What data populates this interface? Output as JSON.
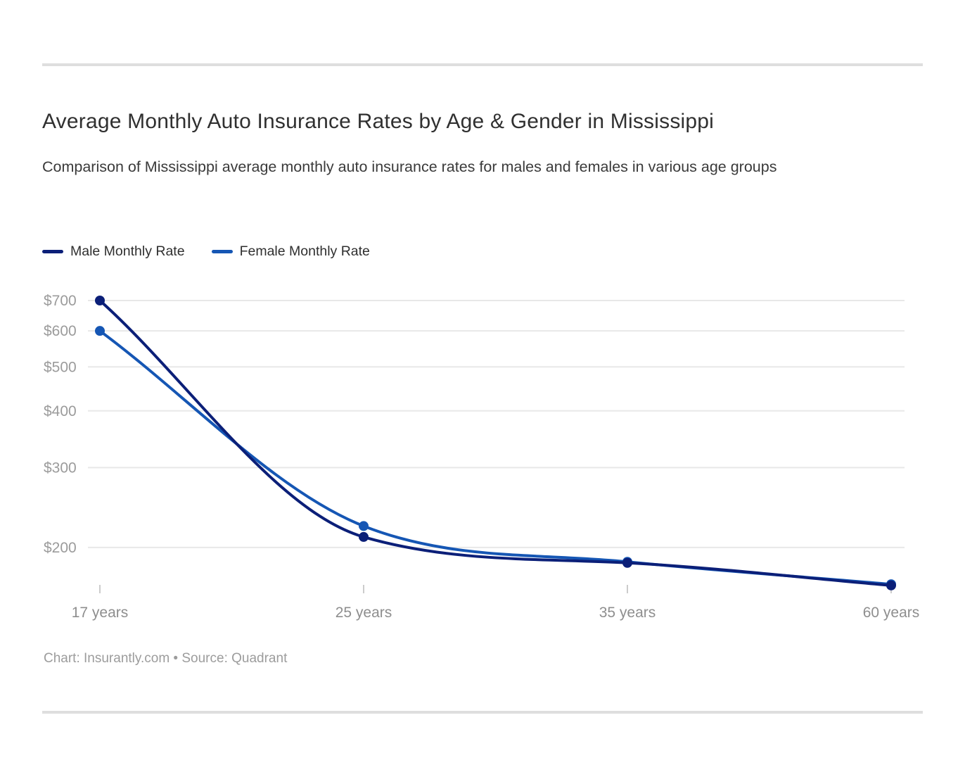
{
  "chart_data": {
    "type": "line",
    "title": "Average Monthly Auto Insurance Rates by Age & Gender in Mississippi",
    "subtitle": "Comparison of Mississippi average monthly auto insurance rates for males and females in various age groups",
    "categories": [
      "17 years",
      "25 years",
      "35 years",
      "60 years"
    ],
    "series": [
      {
        "name": "Male Monthly Rate",
        "color": "#0b1f78",
        "values": [
          700,
          211,
          185,
          165
        ]
      },
      {
        "name": "Female Monthly Rate",
        "color": "#1556b4",
        "values": [
          600,
          223,
          186,
          166
        ]
      }
    ],
    "x_scale": "categorical",
    "y_scale": "log",
    "ylim": [
      150,
      730
    ],
    "y_ticks": [
      {
        "value": 700,
        "label": "$700"
      },
      {
        "value": 600,
        "label": "$600"
      },
      {
        "value": 500,
        "label": "$500"
      },
      {
        "value": 400,
        "label": "$400"
      },
      {
        "value": 300,
        "label": "$300"
      },
      {
        "value": 200,
        "label": "$200"
      }
    ],
    "grid": "horizontal",
    "legend_position": "top-left",
    "line_smoothing": "monotone",
    "colors": {
      "grid_line": "#e8e8e8",
      "axis_tick": "#cccccc",
      "y_tick_label": "#9b9b9b",
      "x_tick_label": "#8e8e8e"
    }
  },
  "attribution": {
    "text": "Chart: Insurantly.com • Source: Quadrant"
  }
}
